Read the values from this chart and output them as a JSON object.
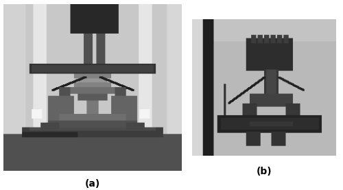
{
  "figure_width": 5.0,
  "figure_height": 2.77,
  "dpi": 100,
  "background_color": "#ffffff",
  "label_a_text": "(a)",
  "label_b_text": "(b)",
  "label_fontsize": 10,
  "label_fontweight": "bold"
}
